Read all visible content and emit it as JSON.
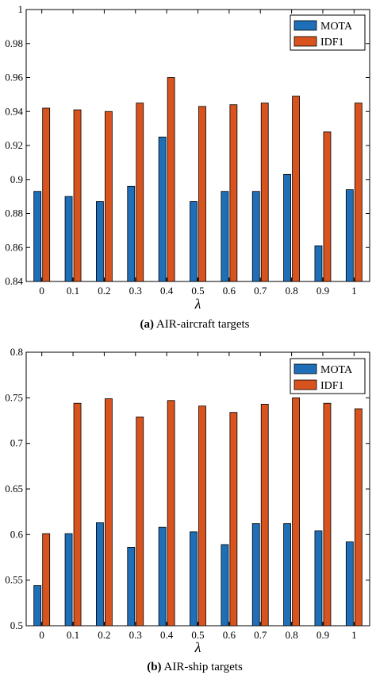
{
  "colors": {
    "mota": "#1f6fb8",
    "idf1": "#d9531e"
  },
  "chart_data": [
    {
      "type": "bar",
      "xlabel": "λ",
      "ylabel": "",
      "ylim": [
        0.84,
        1.0
      ],
      "yticks": [
        "0.84",
        "0.86",
        "0.88",
        "0.9",
        "0.92",
        "0.94",
        "0.96",
        "0.98",
        "1"
      ],
      "categories": [
        "0",
        "0.1",
        "0.2",
        "0.3",
        "0.4",
        "0.5",
        "0.6",
        "0.7",
        "0.8",
        "0.9",
        "1"
      ],
      "series": [
        {
          "name": "MOTA",
          "values": [
            0.893,
            0.89,
            0.887,
            0.896,
            0.925,
            0.887,
            0.893,
            0.893,
            0.903,
            0.861,
            0.894
          ]
        },
        {
          "name": "IDF1",
          "values": [
            0.942,
            0.941,
            0.94,
            0.945,
            0.96,
            0.943,
            0.944,
            0.945,
            0.949,
            0.928,
            0.945
          ]
        }
      ],
      "legend": "top-right",
      "caption_label": "(a)",
      "caption_text": " AIR-aircraft targets"
    },
    {
      "type": "bar",
      "xlabel": "λ",
      "ylabel": "",
      "ylim": [
        0.5,
        0.8
      ],
      "yticks": [
        "0.5",
        "0.55",
        "0.6",
        "0.65",
        "0.7",
        "0.75",
        "0.8"
      ],
      "categories": [
        "0",
        "0.1",
        "0.2",
        "0.3",
        "0.4",
        "0.5",
        "0.6",
        "0.7",
        "0.8",
        "0.9",
        "1"
      ],
      "series": [
        {
          "name": "MOTA",
          "values": [
            0.544,
            0.601,
            0.613,
            0.586,
            0.608,
            0.603,
            0.589,
            0.612,
            0.612,
            0.604,
            0.592
          ]
        },
        {
          "name": "IDF1",
          "values": [
            0.601,
            0.744,
            0.749,
            0.729,
            0.747,
            0.741,
            0.734,
            0.743,
            0.75,
            0.744,
            0.738
          ]
        }
      ],
      "legend": "top-right",
      "caption_label": "(b)",
      "caption_text": " AIR-ship targets"
    }
  ]
}
